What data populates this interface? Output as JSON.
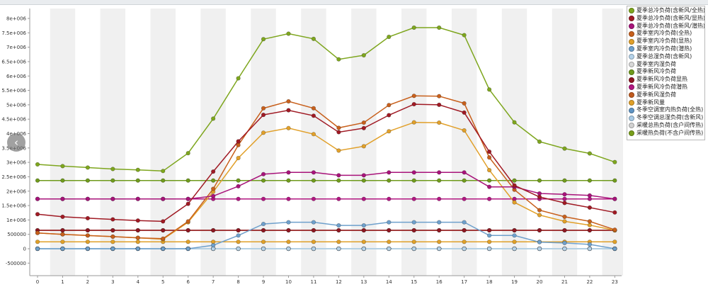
{
  "chart_data": {
    "type": "line",
    "x": [
      0,
      1,
      2,
      3,
      4,
      5,
      6,
      7,
      8,
      9,
      10,
      11,
      12,
      13,
      14,
      15,
      16,
      17,
      18,
      19,
      20,
      21,
      22,
      23
    ],
    "ylim": [
      -600000,
      8300000
    ],
    "y_ticks": [
      -500000,
      0,
      500000,
      1000000,
      1500000,
      2000000,
      2500000,
      3000000,
      3500000,
      4000000,
      4500000,
      5000000,
      5500000,
      6000000,
      6500000,
      7000000,
      7500000,
      8000000
    ],
    "y_tick_labels": [
      "-500000",
      "0",
      "500000",
      "1e+006",
      "1.5e+006",
      "2e+006",
      "2.5e+006",
      "3e+006",
      "3.5e+006",
      "4e+006",
      "4.5e+006",
      "5e+006",
      "5.5e+006",
      "6e+006",
      "6.5e+006",
      "7e+006",
      "7.5e+006",
      "8e+006"
    ],
    "x_tick_labels": [
      "0",
      "1",
      "2",
      "3",
      "4",
      "5",
      "6",
      "7",
      "8",
      "9",
      "10",
      "11",
      "12",
      "13",
      "14",
      "15",
      "16",
      "17",
      "18",
      "19",
      "20",
      "21",
      "22",
      "23"
    ],
    "grid": "alternating vertical bands",
    "legend_position": "right",
    "series": [
      {
        "name": "夏季总冷负荷(含新风/全热)",
        "color": "#7ea61e",
        "values": [
          2930000,
          2870000,
          2820000,
          2770000,
          2740000,
          2700000,
          3320000,
          4520000,
          5920000,
          7280000,
          7470000,
          7290000,
          6580000,
          6720000,
          7360000,
          7680000,
          7680000,
          7420000,
          5530000,
          4390000,
          3720000,
          3480000,
          3310000,
          3010000
        ]
      },
      {
        "name": "夏季总冷负荷(含新风/显热)",
        "color": "#a01a24",
        "values": [
          1200000,
          1110000,
          1060000,
          1020000,
          980000,
          950000,
          1560000,
          2680000,
          3730000,
          4650000,
          4810000,
          4620000,
          4050000,
          4190000,
          4640000,
          5020000,
          5000000,
          4730000,
          3370000,
          2200000,
          1800000,
          1590000,
          1430000,
          1260000
        ]
      },
      {
        "name": "夏季总冷负荷(含新风/潜热)",
        "color": "#a8137a",
        "values": [
          1730000,
          1730000,
          1730000,
          1730000,
          1730000,
          1730000,
          1730000,
          1830000,
          2170000,
          2590000,
          2650000,
          2650000,
          2550000,
          2550000,
          2650000,
          2650000,
          2650000,
          2650000,
          2150000,
          2150000,
          1920000,
          1890000,
          1850000,
          1730000
        ]
      },
      {
        "name": "夏季室内冷负荷(全热)",
        "color": "#c8601c",
        "values": [
          550000,
          500000,
          460000,
          420000,
          380000,
          350000,
          950000,
          2080000,
          3600000,
          4880000,
          5120000,
          4880000,
          4200000,
          4380000,
          4990000,
          5310000,
          5300000,
          5050000,
          3170000,
          2050000,
          1340000,
          1110000,
          950000,
          660000
        ]
      },
      {
        "name": "夏季室内冷负荷(显热)",
        "color": "#e1a02a",
        "values": [
          550000,
          500000,
          460000,
          420000,
          380000,
          330000,
          920000,
          1980000,
          3150000,
          4030000,
          4190000,
          3980000,
          3410000,
          3560000,
          4080000,
          4390000,
          4380000,
          4110000,
          2730000,
          1610000,
          1170000,
          950000,
          820000,
          640000
        ]
      },
      {
        "name": "夏季室内冷负荷(潜热)",
        "color": "#6ea0cc",
        "values": [
          0,
          0,
          0,
          0,
          0,
          0,
          0,
          120000,
          460000,
          860000,
          920000,
          920000,
          810000,
          810000,
          920000,
          920000,
          920000,
          920000,
          460000,
          460000,
          230000,
          200000,
          150000,
          0
        ]
      },
      {
        "name": "夏季总湿负荷(含新风)",
        "color": "#b5d3ea",
        "values": [
          0,
          0,
          0,
          0,
          0,
          0,
          0,
          0,
          0,
          0,
          0,
          0,
          0,
          0,
          0,
          0,
          0,
          0,
          0,
          0,
          0,
          0,
          0,
          0
        ]
      },
      {
        "name": "夏季室内湿负荷",
        "color": "#d8d8d8",
        "values": [
          0,
          0,
          0,
          0,
          0,
          0,
          0,
          0,
          0,
          0,
          0,
          0,
          0,
          0,
          0,
          0,
          0,
          0,
          0,
          0,
          0,
          0,
          0,
          0
        ]
      },
      {
        "name": "夏季新风冷负荷",
        "color": "#6f9a1c",
        "values": [
          2370000,
          2370000,
          2370000,
          2370000,
          2370000,
          2370000,
          2370000,
          2370000,
          2370000,
          2370000,
          2370000,
          2370000,
          2370000,
          2370000,
          2370000,
          2370000,
          2370000,
          2370000,
          2370000,
          2370000,
          2370000,
          2370000,
          2370000,
          2370000
        ]
      },
      {
        "name": "夏季新风冷负荷显热",
        "color": "#8f1622",
        "values": [
          640000,
          640000,
          640000,
          640000,
          640000,
          640000,
          640000,
          640000,
          640000,
          640000,
          640000,
          640000,
          640000,
          640000,
          640000,
          640000,
          640000,
          640000,
          640000,
          640000,
          640000,
          640000,
          640000,
          640000
        ]
      },
      {
        "name": "夏季新风冷负荷潜热",
        "color": "#b21681",
        "values": [
          1730000,
          1730000,
          1730000,
          1730000,
          1730000,
          1730000,
          1730000,
          1730000,
          1730000,
          1730000,
          1730000,
          1730000,
          1730000,
          1730000,
          1730000,
          1730000,
          1730000,
          1730000,
          1730000,
          1730000,
          1730000,
          1730000,
          1730000,
          1730000
        ]
      },
      {
        "name": "夏季新风湿负荷",
        "color": "#c05a1e",
        "values": [
          640000,
          640000,
          640000,
          640000,
          640000,
          640000,
          640000,
          640000,
          640000,
          640000,
          640000,
          640000,
          640000,
          640000,
          640000,
          640000,
          640000,
          640000,
          640000,
          640000,
          640000,
          640000,
          640000,
          640000
        ]
      },
      {
        "name": "夏季新风量",
        "color": "#e0a028",
        "values": [
          240000,
          240000,
          240000,
          240000,
          240000,
          240000,
          240000,
          240000,
          240000,
          240000,
          240000,
          240000,
          240000,
          240000,
          240000,
          240000,
          240000,
          240000,
          240000,
          240000,
          240000,
          240000,
          240000,
          240000
        ]
      },
      {
        "name": "冬季空调室内热负荷(全热)",
        "color": "#5f94c4",
        "values": [
          0,
          0,
          0,
          0,
          0,
          0,
          0,
          0,
          0,
          0,
          0,
          0,
          0,
          0,
          0,
          0,
          0,
          0,
          0,
          0,
          0,
          0,
          0,
          0
        ]
      },
      {
        "name": "冬季空调总湿负荷(含新风)",
        "color": "#a9cbe6",
        "values": [
          0,
          0,
          0,
          0,
          0,
          0,
          0,
          0,
          0,
          0,
          0,
          0,
          0,
          0,
          0,
          0,
          0,
          0,
          0,
          0,
          0,
          0,
          0,
          0
        ]
      },
      {
        "name": "采暖总热负荷(含户间传热)",
        "color": "#d2d2d2",
        "values": [
          0,
          0,
          0,
          0,
          0,
          0,
          0,
          0,
          0,
          0,
          0,
          0,
          0,
          0,
          0,
          0,
          0,
          0,
          0,
          0,
          0,
          0,
          0,
          0
        ]
      },
      {
        "name": "采暖热负荷(不含户间传热)",
        "color": "#789e1a",
        "values": [
          0,
          0,
          0,
          0,
          0,
          0,
          0,
          0,
          0,
          0,
          0,
          0,
          0,
          0,
          0,
          0,
          0,
          0,
          0,
          0,
          0,
          0,
          0,
          0
        ]
      }
    ]
  }
}
